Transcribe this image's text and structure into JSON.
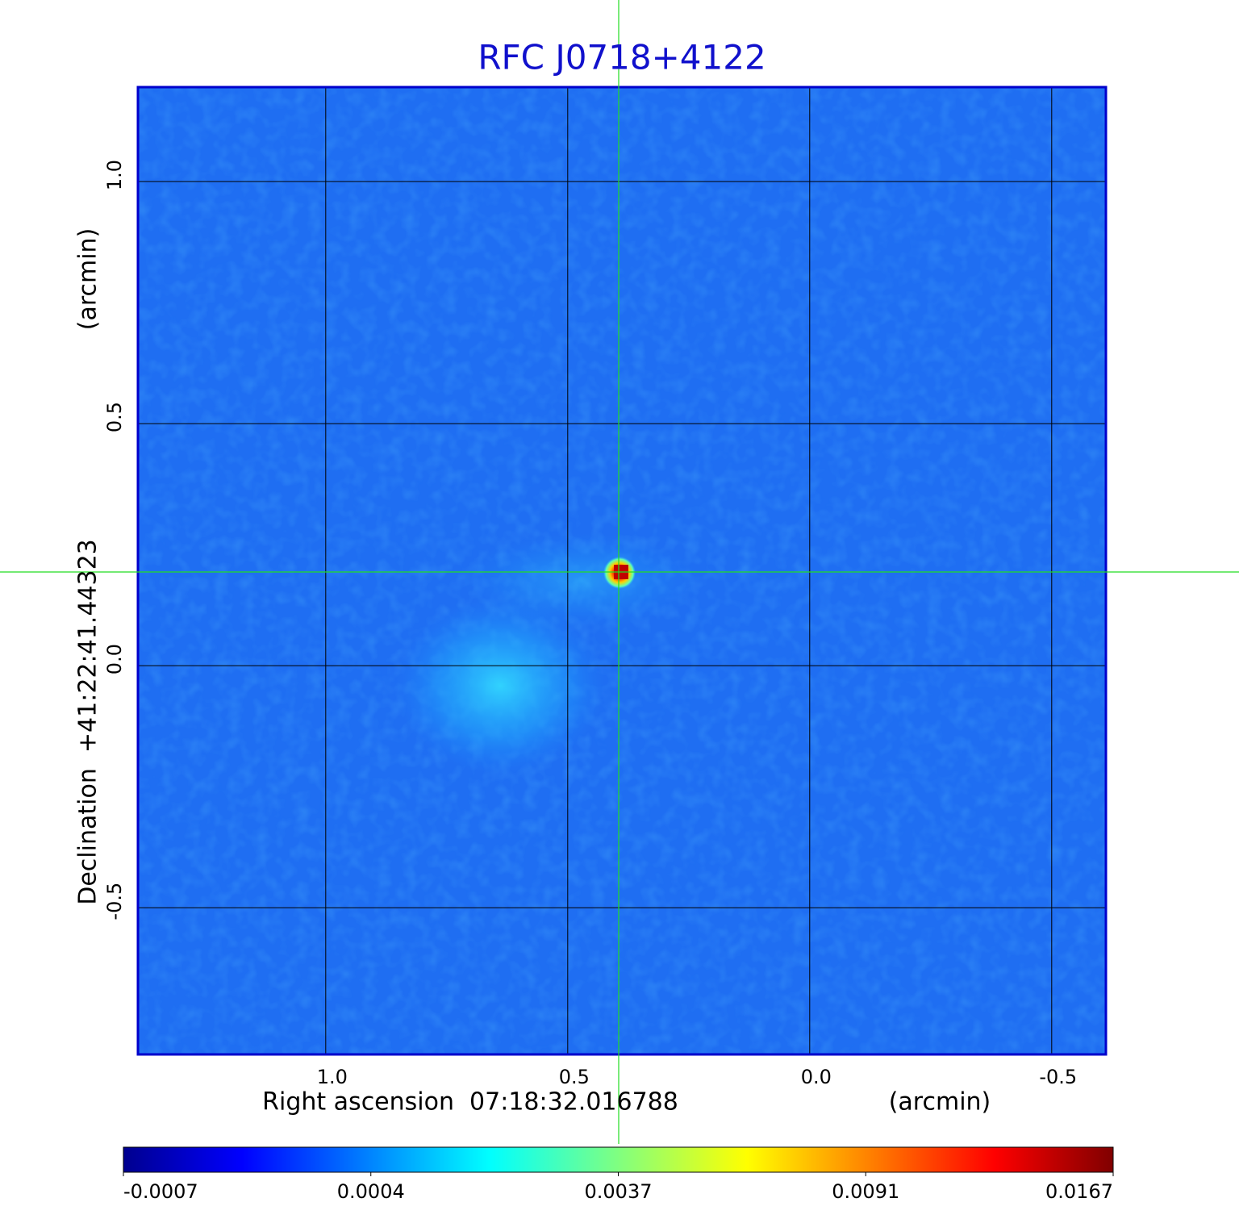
{
  "chart_data": {
    "type": "image",
    "title": "RFC J0718+4122",
    "x_label": "Right ascension  07:18:32.016788",
    "x_unit": "(arcmin)",
    "y_label": "Declination  +41:22:41.44323",
    "y_unit": "(arcmin)",
    "xlim": [
      1.388,
      -0.612
    ],
    "ylim": [
      -0.803,
      1.195
    ],
    "xticks": [
      {
        "value": 1,
        "label": "1.0"
      },
      0.5,
      {
        "value": 0,
        "label": "0.0"
      },
      -0.5
    ],
    "yticks": [
      {
        "value": 1,
        "label": "1.0"
      },
      0.5,
      {
        "value": 0,
        "label": "0.0"
      },
      -0.5
    ],
    "grid": true,
    "colorbar_ticks": [
      -0.0007,
      0.0004,
      0.0037,
      0.0091,
      0.0167
    ]
  }
}
